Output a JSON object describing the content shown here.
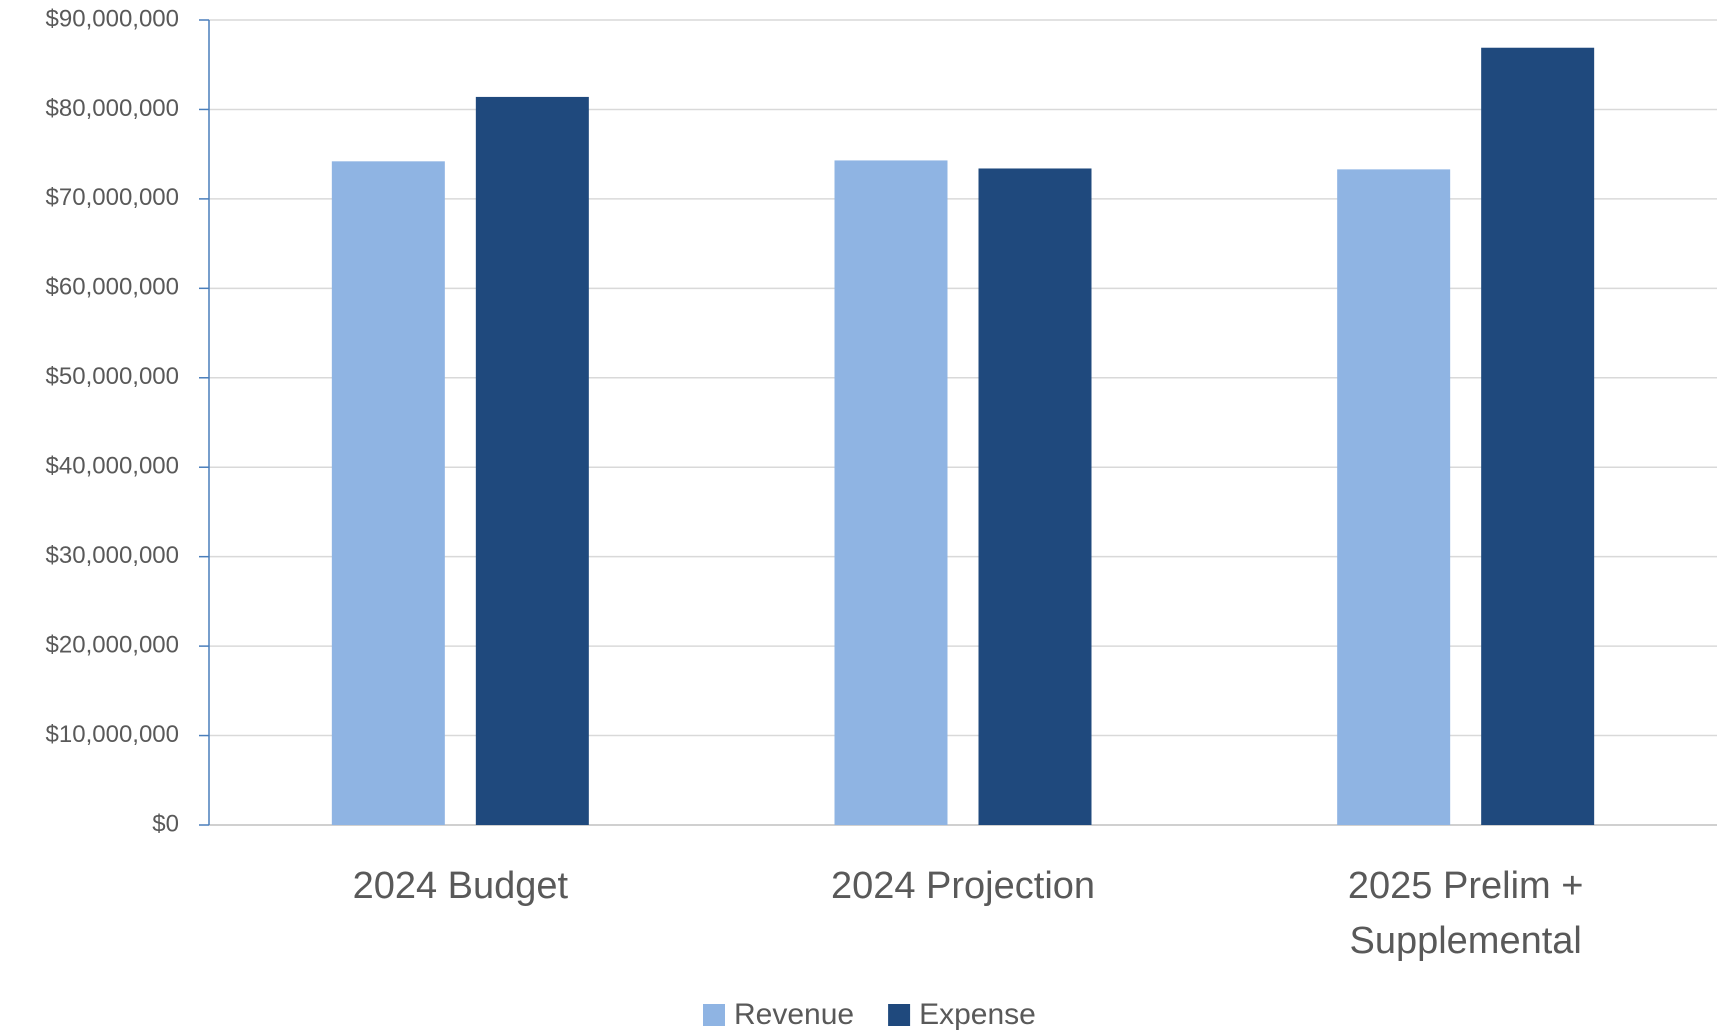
{
  "chart_data": {
    "type": "bar",
    "categories": [
      "2024 Budget",
      "2024 Projection",
      "2025 Prelim + Supplemental"
    ],
    "series": [
      {
        "name": "Revenue",
        "color": "#8fb4e3",
        "values": [
          74200000,
          74300000,
          73300000
        ]
      },
      {
        "name": "Expense",
        "color": "#1f497d",
        "values": [
          81400000,
          73400000,
          86900000
        ]
      }
    ],
    "ylim": [
      0,
      90000000
    ],
    "yticks": [
      {
        "value": 0,
        "label": "$0"
      },
      {
        "value": 10000000,
        "label": "$10,000,000"
      },
      {
        "value": 20000000,
        "label": "$20,000,000"
      },
      {
        "value": 30000000,
        "label": "$30,000,000"
      },
      {
        "value": 40000000,
        "label": "$40,000,000"
      },
      {
        "value": 50000000,
        "label": "$50,000,000"
      },
      {
        "value": 60000000,
        "label": "$60,000,000"
      },
      {
        "value": 70000000,
        "label": "$70,000,000"
      },
      {
        "value": 80000000,
        "label": "$80,000,000"
      },
      {
        "value": 90000000,
        "label": "$90,000,000"
      }
    ],
    "grid": true,
    "legend": "bottom"
  }
}
